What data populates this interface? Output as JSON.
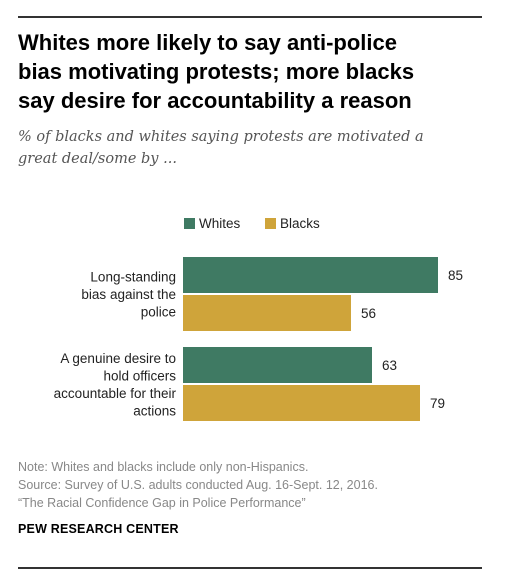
{
  "title_lines": [
    "Whites more likely to say anti-police",
    "bias motivating protests; more blacks",
    "say desire for accountability a reason"
  ],
  "subtitle_lines": [
    "% of blacks and whites saying protests are motivated a",
    "great deal/some by ..."
  ],
  "chart_data": {
    "type": "bar",
    "orientation": "horizontal",
    "categories": [
      [
        "Long-standing",
        "bias against the",
        "police"
      ],
      [
        "A genuine desire to",
        "hold officers",
        "accountable for their",
        "actions"
      ]
    ],
    "series": [
      {
        "name": "Whites",
        "color": "#3f7a63",
        "values": [
          85,
          63
        ]
      },
      {
        "name": "Blacks",
        "color": "#cfa43a",
        "values": [
          56,
          79
        ]
      }
    ],
    "xlim": [
      0,
      100
    ],
    "legend_position": "top",
    "grid": false,
    "data_labels": true
  },
  "notes": [
    "Note: Whites and blacks include only non-Hispanics.",
    "Source: Survey of U.S. adults conducted Aug. 16-Sept. 12, 2016.",
    "“The Racial Confidence Gap in Police Performance”"
  ],
  "brand": "PEW RESEARCH CENTER"
}
